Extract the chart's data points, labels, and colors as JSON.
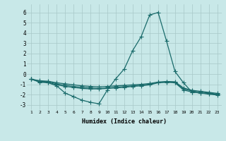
{
  "xlabel": "Humidex (Indice chaleur)",
  "xlim": [
    0.5,
    23.5
  ],
  "ylim": [
    -3.5,
    6.8
  ],
  "xticks": [
    1,
    2,
    3,
    4,
    5,
    6,
    7,
    8,
    9,
    10,
    11,
    12,
    13,
    14,
    15,
    16,
    17,
    18,
    19,
    20,
    21,
    22,
    23
  ],
  "yticks": [
    -3,
    -2,
    -1,
    0,
    1,
    2,
    3,
    4,
    5,
    6
  ],
  "bg_color": "#c8e8e8",
  "grid_color": "#a8c8c8",
  "line_color": "#1a6b6b",
  "line1_x": [
    1,
    2,
    3,
    4,
    5,
    6,
    7,
    8,
    9,
    10,
    11,
    12,
    13,
    14,
    15,
    16,
    17,
    18,
    19,
    20,
    21,
    22,
    23
  ],
  "line1_y": [
    -0.5,
    -0.8,
    -0.85,
    -1.15,
    -1.85,
    -2.2,
    -2.55,
    -2.75,
    -2.9,
    -1.55,
    -0.45,
    0.5,
    2.3,
    3.65,
    5.75,
    6.0,
    3.2,
    0.25,
    -0.85,
    -1.75,
    -1.85,
    -1.95,
    -2.05
  ],
  "line2_x": [
    1,
    2,
    3,
    4,
    5,
    6,
    7,
    8,
    9,
    10,
    11,
    12,
    13,
    14,
    15,
    16,
    17,
    18,
    19,
    20,
    21,
    22,
    23
  ],
  "line2_y": [
    -0.5,
    -0.75,
    -0.8,
    -1.05,
    -1.2,
    -1.3,
    -1.4,
    -1.45,
    -1.45,
    -1.4,
    -1.35,
    -1.3,
    -1.2,
    -1.15,
    -1.05,
    -0.85,
    -0.8,
    -0.85,
    -1.55,
    -1.75,
    -1.85,
    -1.9,
    -2.0
  ],
  "line3_x": [
    1,
    2,
    3,
    4,
    5,
    6,
    7,
    8,
    9,
    10,
    11,
    12,
    13,
    14,
    15,
    16,
    17,
    18,
    19,
    20,
    21,
    22,
    23
  ],
  "line3_y": [
    -0.5,
    -0.7,
    -0.75,
    -0.95,
    -1.1,
    -1.2,
    -1.3,
    -1.35,
    -1.4,
    -1.35,
    -1.28,
    -1.22,
    -1.15,
    -1.08,
    -0.98,
    -0.82,
    -0.78,
    -0.8,
    -1.45,
    -1.65,
    -1.75,
    -1.85,
    -1.95
  ],
  "line4_x": [
    1,
    2,
    3,
    4,
    5,
    6,
    7,
    8,
    9,
    10,
    11,
    12,
    13,
    14,
    15,
    16,
    17,
    18,
    19,
    20,
    21,
    22,
    23
  ],
  "line4_y": [
    -0.5,
    -0.65,
    -0.7,
    -0.85,
    -0.95,
    -1.05,
    -1.15,
    -1.2,
    -1.25,
    -1.2,
    -1.15,
    -1.1,
    -1.05,
    -1.0,
    -0.92,
    -0.78,
    -0.72,
    -0.75,
    -1.35,
    -1.58,
    -1.68,
    -1.78,
    -1.88
  ]
}
